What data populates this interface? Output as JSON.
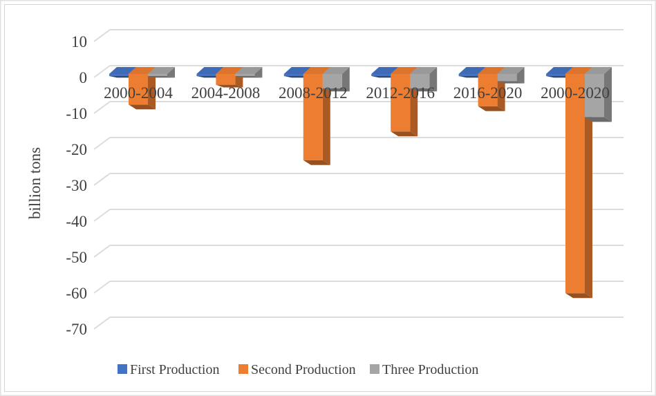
{
  "figure": {
    "outer_border_color": "#E2E2E2",
    "inner_border_color": "#D5D5D5",
    "background": "#FFFFFF"
  },
  "chart_data": {
    "type": "bar",
    "variant": "3d_clustered_column",
    "title": "",
    "xlabel": "",
    "ylabel": "billion tons",
    "categories": [
      "2000-2004",
      "2004-2008",
      "2008-2012",
      "2012-2016",
      "2016-2020",
      "2000-2020"
    ],
    "series": [
      {
        "name": "First Production",
        "color": "#4472C4",
        "values": [
          0,
          0,
          0,
          0,
          0,
          0
        ]
      },
      {
        "name": "Second Production",
        "color": "#ED7D31",
        "values": [
          -8.5,
          -3,
          -24,
          -16,
          -9,
          -61
        ]
      },
      {
        "name": "Three Production",
        "color": "#A5A5A5",
        "values": [
          -0.5,
          -0.5,
          -4,
          -4,
          -2,
          -12
        ]
      }
    ],
    "ylim": [
      -70,
      10
    ],
    "yticks": [
      10,
      0,
      -10,
      -20,
      -30,
      -40,
      -50,
      -60,
      -70
    ],
    "grid": true,
    "gridline_color": "#DBDBDB",
    "text_color": "#404040",
    "legend_position": "bottom"
  }
}
